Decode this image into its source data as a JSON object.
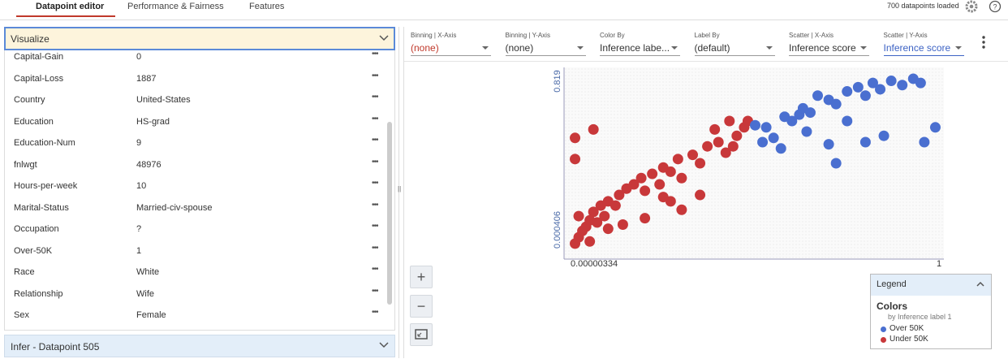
{
  "tabs": [
    "Datapoint editor",
    "Performance & Fairness",
    "Features"
  ],
  "status": "700 datapoints loaded",
  "visualize_panel": {
    "title": "Visualize",
    "features": [
      {
        "name": "Capital-Gain",
        "value": 0
      },
      {
        "name": "Capital-Loss",
        "value": 1887
      },
      {
        "name": "Country",
        "value": "United-States"
      },
      {
        "name": "Education",
        "value": "HS-grad"
      },
      {
        "name": "Education-Num",
        "value": 9
      },
      {
        "name": "fnlwgt",
        "value": 48976
      },
      {
        "name": "Hours-per-week",
        "value": 10
      },
      {
        "name": "Marital-Status",
        "value": "Married-civ-spouse"
      },
      {
        "name": "Occupation",
        "value": "?"
      },
      {
        "name": "Over-50K",
        "value": 1
      },
      {
        "name": "Race",
        "value": "White"
      },
      {
        "name": "Relationship",
        "value": "Wife"
      },
      {
        "name": "Sex",
        "value": "Female"
      }
    ]
  },
  "infer_panel": {
    "title": "Infer - Datapoint 505"
  },
  "toolbar": [
    {
      "label": "Binning | X-Axis",
      "value": "(none)"
    },
    {
      "label": "Binning | Y-Axis",
      "value": "(none)"
    },
    {
      "label": "Color By",
      "value": "Inference labe..."
    },
    {
      "label": "Label By",
      "value": "(default)"
    },
    {
      "label": "Scatter | X-Axis",
      "value": "Inference score"
    },
    {
      "label": "Scatter | Y-Axis",
      "value": "Inference score"
    }
  ],
  "scatter": {
    "xlim": [
      3.34e-06,
      1
    ],
    "ylim": [
      0.000406,
      0.819
    ],
    "series": [
      {
        "name": "Over 50K",
        "color": "#4a6fd0",
        "points": [
          [
            0.5,
            0.58
          ],
          [
            0.52,
            0.5
          ],
          [
            0.55,
            0.52
          ],
          [
            0.58,
            0.62
          ],
          [
            0.6,
            0.6
          ],
          [
            0.62,
            0.63
          ],
          [
            0.63,
            0.66
          ],
          [
            0.65,
            0.64
          ],
          [
            0.64,
            0.55
          ],
          [
            0.67,
            0.72
          ],
          [
            0.7,
            0.7
          ],
          [
            0.72,
            0.68
          ],
          [
            0.75,
            0.74
          ],
          [
            0.78,
            0.76
          ],
          [
            0.8,
            0.72
          ],
          [
            0.82,
            0.78
          ],
          [
            0.84,
            0.75
          ],
          [
            0.87,
            0.79
          ],
          [
            0.9,
            0.77
          ],
          [
            0.93,
            0.8
          ],
          [
            0.95,
            0.78
          ],
          [
            0.99,
            0.57
          ],
          [
            0.96,
            0.5
          ],
          [
            0.85,
            0.53
          ],
          [
            0.8,
            0.5
          ],
          [
            0.7,
            0.49
          ],
          [
            0.72,
            0.4
          ],
          [
            0.57,
            0.47
          ],
          [
            0.75,
            0.6
          ],
          [
            0.53,
            0.57
          ]
        ]
      },
      {
        "name": "Under 50K",
        "color": "#c8383a",
        "points": [
          [
            0.01,
            0.02
          ],
          [
            0.02,
            0.05
          ],
          [
            0.03,
            0.08
          ],
          [
            0.04,
            0.1
          ],
          [
            0.05,
            0.13
          ],
          [
            0.02,
            0.15
          ],
          [
            0.06,
            0.17
          ],
          [
            0.08,
            0.2
          ],
          [
            0.1,
            0.22
          ],
          [
            0.12,
            0.2
          ],
          [
            0.07,
            0.12
          ],
          [
            0.09,
            0.15
          ],
          [
            0.13,
            0.25
          ],
          [
            0.15,
            0.28
          ],
          [
            0.17,
            0.3
          ],
          [
            0.19,
            0.33
          ],
          [
            0.2,
            0.27
          ],
          [
            0.22,
            0.35
          ],
          [
            0.25,
            0.38
          ],
          [
            0.27,
            0.36
          ],
          [
            0.24,
            0.3
          ],
          [
            0.29,
            0.42
          ],
          [
            0.3,
            0.33
          ],
          [
            0.33,
            0.44
          ],
          [
            0.35,
            0.4
          ],
          [
            0.37,
            0.48
          ],
          [
            0.4,
            0.5
          ],
          [
            0.42,
            0.45
          ],
          [
            0.45,
            0.53
          ],
          [
            0.47,
            0.57
          ],
          [
            0.43,
            0.6
          ],
          [
            0.39,
            0.56
          ],
          [
            0.48,
            0.6
          ],
          [
            0.44,
            0.48
          ],
          [
            0.01,
            0.52
          ],
          [
            0.06,
            0.56
          ],
          [
            0.01,
            0.42
          ],
          [
            0.25,
            0.24
          ],
          [
            0.3,
            0.18
          ],
          [
            0.2,
            0.14
          ],
          [
            0.14,
            0.11
          ],
          [
            0.35,
            0.25
          ],
          [
            0.27,
            0.22
          ],
          [
            0.05,
            0.03
          ],
          [
            0.1,
            0.09
          ]
        ]
      }
    ]
  },
  "legend": {
    "title": "Legend",
    "heading": "Colors",
    "subheading": "by Inference label 1"
  }
}
